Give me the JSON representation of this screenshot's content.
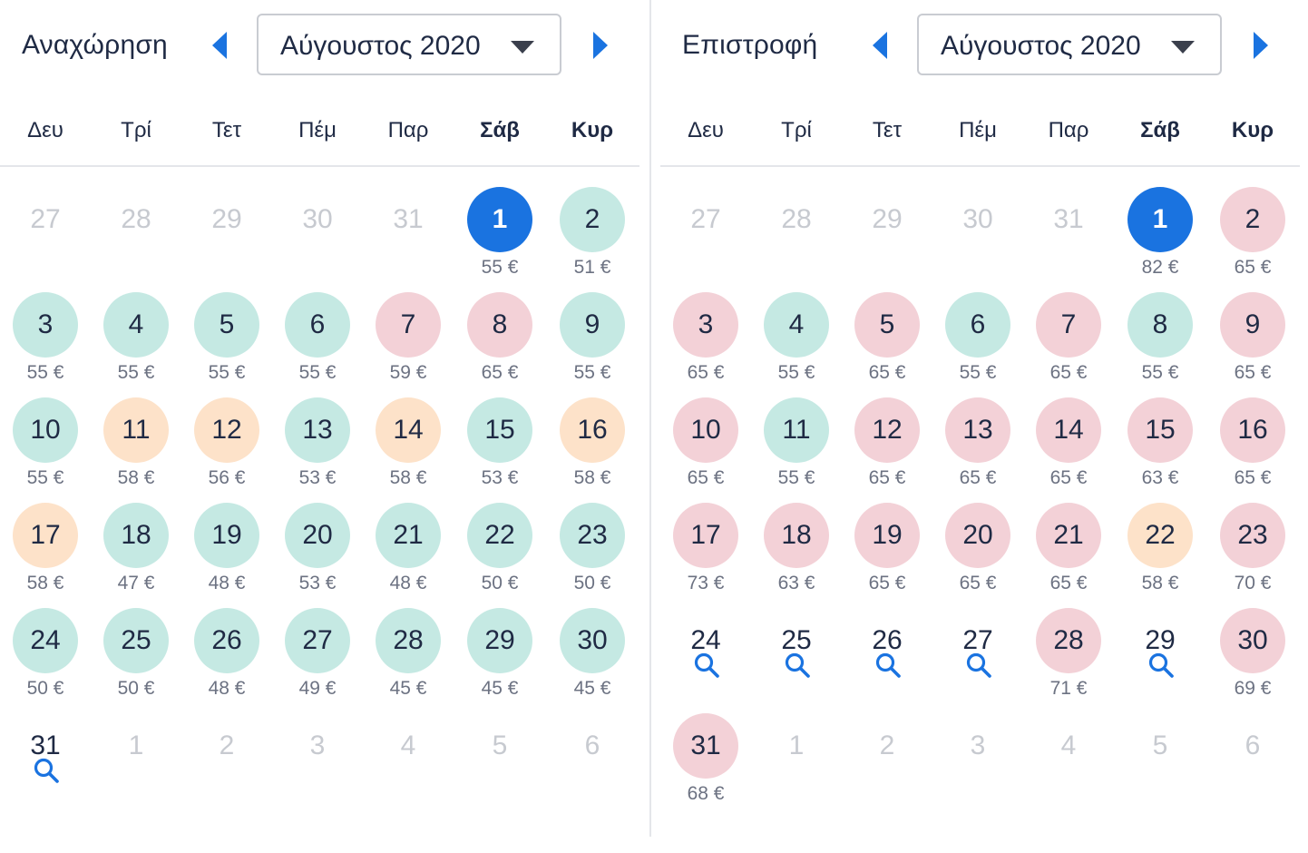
{
  "weekdays": [
    "Δευ",
    "Τρί",
    "Τετ",
    "Πέμ",
    "Παρ",
    "Σάβ",
    "Κυρ"
  ],
  "colors": {
    "selected": "#1a73e0",
    "cheap": "#c5e9e3",
    "medium": "#fde2c9",
    "expensive": "#f3d1d7",
    "search_icon": "#1a73e0"
  },
  "departure": {
    "title": "Αναχώρηση",
    "month": "Αύγουστος 2020",
    "days": [
      {
        "d": "27",
        "s": "muted"
      },
      {
        "d": "28",
        "s": "muted"
      },
      {
        "d": "29",
        "s": "muted"
      },
      {
        "d": "30",
        "s": "muted"
      },
      {
        "d": "31",
        "s": "muted"
      },
      {
        "d": "1",
        "s": "selected",
        "p": "55 €"
      },
      {
        "d": "2",
        "s": "teal",
        "p": "51 €"
      },
      {
        "d": "3",
        "s": "teal",
        "p": "55 €"
      },
      {
        "d": "4",
        "s": "teal",
        "p": "55 €"
      },
      {
        "d": "5",
        "s": "teal",
        "p": "55 €"
      },
      {
        "d": "6",
        "s": "teal",
        "p": "55 €"
      },
      {
        "d": "7",
        "s": "pink",
        "p": "59 €"
      },
      {
        "d": "8",
        "s": "pink",
        "p": "65 €"
      },
      {
        "d": "9",
        "s": "teal",
        "p": "55 €"
      },
      {
        "d": "10",
        "s": "teal",
        "p": "55 €"
      },
      {
        "d": "11",
        "s": "peach",
        "p": "58 €"
      },
      {
        "d": "12",
        "s": "peach",
        "p": "56 €"
      },
      {
        "d": "13",
        "s": "teal",
        "p": "53 €"
      },
      {
        "d": "14",
        "s": "peach",
        "p": "58 €"
      },
      {
        "d": "15",
        "s": "teal",
        "p": "53 €"
      },
      {
        "d": "16",
        "s": "peach",
        "p": "58 €"
      },
      {
        "d": "17",
        "s": "peach",
        "p": "58 €"
      },
      {
        "d": "18",
        "s": "teal",
        "p": "47 €"
      },
      {
        "d": "19",
        "s": "teal",
        "p": "48 €"
      },
      {
        "d": "20",
        "s": "teal",
        "p": "53 €"
      },
      {
        "d": "21",
        "s": "teal",
        "p": "48 €"
      },
      {
        "d": "22",
        "s": "teal",
        "p": "50 €"
      },
      {
        "d": "23",
        "s": "teal",
        "p": "50 €"
      },
      {
        "d": "24",
        "s": "teal",
        "p": "50 €"
      },
      {
        "d": "25",
        "s": "teal",
        "p": "50 €"
      },
      {
        "d": "26",
        "s": "teal",
        "p": "48 €"
      },
      {
        "d": "27",
        "s": "teal",
        "p": "49 €"
      },
      {
        "d": "28",
        "s": "teal",
        "p": "45 €"
      },
      {
        "d": "29",
        "s": "teal",
        "p": "45 €"
      },
      {
        "d": "30",
        "s": "teal",
        "p": "45 €"
      },
      {
        "d": "31",
        "s": "plain",
        "search": true
      },
      {
        "d": "1",
        "s": "muted"
      },
      {
        "d": "2",
        "s": "muted"
      },
      {
        "d": "3",
        "s": "muted"
      },
      {
        "d": "4",
        "s": "muted"
      },
      {
        "d": "5",
        "s": "muted"
      },
      {
        "d": "6",
        "s": "muted"
      }
    ]
  },
  "return": {
    "title": "Επιστροφή",
    "month": "Αύγουστος 2020",
    "days": [
      {
        "d": "27",
        "s": "muted"
      },
      {
        "d": "28",
        "s": "muted"
      },
      {
        "d": "29",
        "s": "muted"
      },
      {
        "d": "30",
        "s": "muted"
      },
      {
        "d": "31",
        "s": "muted"
      },
      {
        "d": "1",
        "s": "selected",
        "p": "82 €"
      },
      {
        "d": "2",
        "s": "pink",
        "p": "65 €"
      },
      {
        "d": "3",
        "s": "pink",
        "p": "65 €"
      },
      {
        "d": "4",
        "s": "teal",
        "p": "55 €"
      },
      {
        "d": "5",
        "s": "pink",
        "p": "65 €"
      },
      {
        "d": "6",
        "s": "teal",
        "p": "55 €"
      },
      {
        "d": "7",
        "s": "pink",
        "p": "65 €"
      },
      {
        "d": "8",
        "s": "teal",
        "p": "55 €"
      },
      {
        "d": "9",
        "s": "pink",
        "p": "65 €"
      },
      {
        "d": "10",
        "s": "pink",
        "p": "65 €"
      },
      {
        "d": "11",
        "s": "teal",
        "p": "55 €"
      },
      {
        "d": "12",
        "s": "pink",
        "p": "65 €"
      },
      {
        "d": "13",
        "s": "pink",
        "p": "65 €"
      },
      {
        "d": "14",
        "s": "pink",
        "p": "65 €"
      },
      {
        "d": "15",
        "s": "pink",
        "p": "63 €"
      },
      {
        "d": "16",
        "s": "pink",
        "p": "65 €"
      },
      {
        "d": "17",
        "s": "pink",
        "p": "73 €"
      },
      {
        "d": "18",
        "s": "pink",
        "p": "63 €"
      },
      {
        "d": "19",
        "s": "pink",
        "p": "65 €"
      },
      {
        "d": "20",
        "s": "pink",
        "p": "65 €"
      },
      {
        "d": "21",
        "s": "pink",
        "p": "65 €"
      },
      {
        "d": "22",
        "s": "peach",
        "p": "58 €"
      },
      {
        "d": "23",
        "s": "pink",
        "p": "70 €"
      },
      {
        "d": "24",
        "s": "plain",
        "search": true
      },
      {
        "d": "25",
        "s": "plain",
        "search": true
      },
      {
        "d": "26",
        "s": "plain",
        "search": true
      },
      {
        "d": "27",
        "s": "plain",
        "search": true
      },
      {
        "d": "28",
        "s": "pink",
        "p": "71 €"
      },
      {
        "d": "29",
        "s": "plain",
        "search": true
      },
      {
        "d": "30",
        "s": "pink",
        "p": "69 €"
      },
      {
        "d": "31",
        "s": "pink",
        "p": "68 €"
      },
      {
        "d": "1",
        "s": "muted"
      },
      {
        "d": "2",
        "s": "muted"
      },
      {
        "d": "3",
        "s": "muted"
      },
      {
        "d": "4",
        "s": "muted"
      },
      {
        "d": "5",
        "s": "muted"
      },
      {
        "d": "6",
        "s": "muted"
      }
    ]
  }
}
